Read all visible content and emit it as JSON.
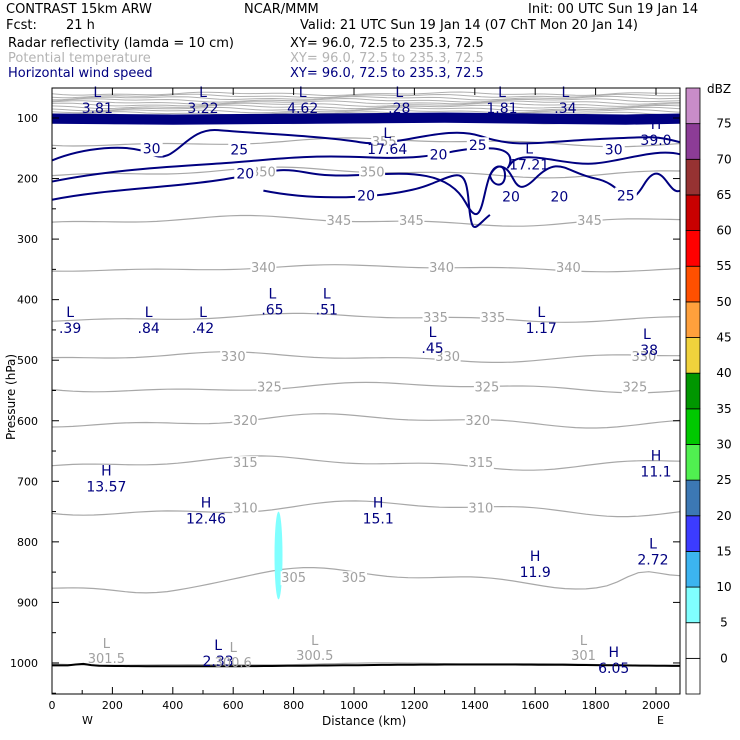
{
  "header": {
    "model": "CONTRAST 15km ARW",
    "org": "NCAR/MMM",
    "init": "Init: 00 UTC Sun 19 Jan 14",
    "fcst_label": "Fcst:",
    "fcst_value": "21 h",
    "valid": "Valid: 21 UTC Sun 19 Jan 14 (07 ChT Mon 20 Jan 14)"
  },
  "fields": [
    {
      "name": "Radar reflectivity (lamda = 10 cm)",
      "xy": "XY=  96.0, 72.5 to 235.3, 72.5",
      "color": "#000000"
    },
    {
      "name": "Potential temperature",
      "xy": "XY=  96.0, 72.5 to 235.3, 72.5",
      "color": "#b4b4b4"
    },
    {
      "name": "Horizontal wind speed",
      "xy": "XY=  96.0, 72.5 to 235.3, 72.5",
      "color": "#000080"
    }
  ],
  "chart_data": {
    "type": "cross-section",
    "xlabel": "Distance (km)",
    "ylabel": "Pressure (hPa)",
    "xlim": [
      0,
      2080
    ],
    "ylim": [
      1050,
      55
    ],
    "x_ticks": [
      0,
      200,
      400,
      600,
      800,
      1000,
      1200,
      1400,
      1600,
      1800,
      2000
    ],
    "y_ticks": [
      100,
      200,
      300,
      400,
      500,
      600,
      700,
      800,
      900,
      1000
    ],
    "left_end_label": "W",
    "right_end_label": "E",
    "colorbar": {
      "unit": "dBZ",
      "levels": [
        -5,
        0,
        5,
        10,
        15,
        20,
        25,
        30,
        35,
        40,
        45,
        50,
        55,
        60,
        65,
        70,
        75
      ],
      "labels": [
        0,
        5,
        10,
        15,
        20,
        25,
        30,
        35,
        40,
        45,
        50,
        55,
        60,
        65,
        70,
        75
      ],
      "colors": [
        "#ffffff",
        "#ffffff",
        "#80ffff",
        "#3cb4f0",
        "#3c3cff",
        "#3c78b4",
        "#50f050",
        "#00c800",
        "#009600",
        "#f0d23c",
        "#ffa03c",
        "#ff5000",
        "#ff0000",
        "#c80000",
        "#963232",
        "#8c3c96",
        "#c88cc8"
      ]
    },
    "theta_isentropes": [
      {
        "theta": 300.5,
        "p": 1002
      },
      {
        "theta": 305,
        "p": 860
      },
      {
        "theta": 310,
        "p": 745
      },
      {
        "theta": 315,
        "p": 670
      },
      {
        "theta": 320,
        "p": 600
      },
      {
        "theta": 325,
        "p": 545
      },
      {
        "theta": 330,
        "p": 495
      },
      {
        "theta": 335,
        "p": 430
      },
      {
        "theta": 340,
        "p": 348
      },
      {
        "theta": 345,
        "p": 270
      },
      {
        "theta": 350,
        "p": 190
      },
      {
        "theta": 355,
        "p": 140
      }
    ],
    "wind_speed_contours": [
      20,
      25,
      30
    ],
    "extrema_labels": [
      {
        "type": "L",
        "value": "3.81",
        "x": 150,
        "p": 72
      },
      {
        "type": "L",
        "value": "3.22",
        "x": 500,
        "p": 72
      },
      {
        "type": "L",
        "value": "4.62",
        "x": 830,
        "p": 72
      },
      {
        "type": "L",
        "value": ".28",
        "x": 1150,
        "p": 72
      },
      {
        "type": "L",
        "value": "1.81",
        "x": 1490,
        "p": 72
      },
      {
        "type": "L",
        "value": ".34",
        "x": 1700,
        "p": 72
      },
      {
        "type": "L",
        "value": "17.64",
        "x": 1110,
        "p": 140
      },
      {
        "type": "L",
        "value": "17.21",
        "x": 1580,
        "p": 165
      },
      {
        "type": "H",
        "value": "39.0",
        "x": 2000,
        "p": 125
      },
      {
        "type": "L",
        "value": ".39",
        "x": 60,
        "p": 435
      },
      {
        "type": "L",
        "value": ".84",
        "x": 320,
        "p": 435
      },
      {
        "type": "L",
        "value": ".42",
        "x": 500,
        "p": 435
      },
      {
        "type": "L",
        "value": ".65",
        "x": 730,
        "p": 405
      },
      {
        "type": "L",
        "value": ".51",
        "x": 910,
        "p": 405
      },
      {
        "type": "L",
        "value": ".45",
        "x": 1260,
        "p": 468
      },
      {
        "type": "L",
        "value": "1.17",
        "x": 1620,
        "p": 435
      },
      {
        "type": "L",
        "value": ".38",
        "x": 1970,
        "p": 472
      },
      {
        "type": "H",
        "value": "11.1",
        "x": 2000,
        "p": 672
      },
      {
        "type": "H",
        "value": "13.57",
        "x": 180,
        "p": 697
      },
      {
        "type": "H",
        "value": "12.46",
        "x": 510,
        "p": 750
      },
      {
        "type": "H",
        "value": "15.1",
        "x": 1080,
        "p": 750
      },
      {
        "type": "L",
        "value": "2.72",
        "x": 1990,
        "p": 818
      },
      {
        "type": "H",
        "value": "11.9",
        "x": 1600,
        "p": 838
      },
      {
        "type": "L",
        "value": "2.33",
        "x": 550,
        "p": 985
      },
      {
        "type": "H",
        "value": "6.05",
        "x": 1860,
        "p": 997
      }
    ],
    "gray_extrema_labels": [
      {
        "type": "L",
        "value": "301.5",
        "x": 180,
        "p": 995
      },
      {
        "type": "L",
        "value": "300.6",
        "x": 600,
        "p": 1002
      },
      {
        "type": "L",
        "value": "300.5",
        "x": 870,
        "p": 990
      },
      {
        "type": "L",
        "value": "301",
        "x": 1760,
        "p": 990
      }
    ],
    "reflectivity_cell": {
      "x": 750,
      "p_top": 750,
      "p_bottom": 895,
      "dbz": 5
    }
  }
}
